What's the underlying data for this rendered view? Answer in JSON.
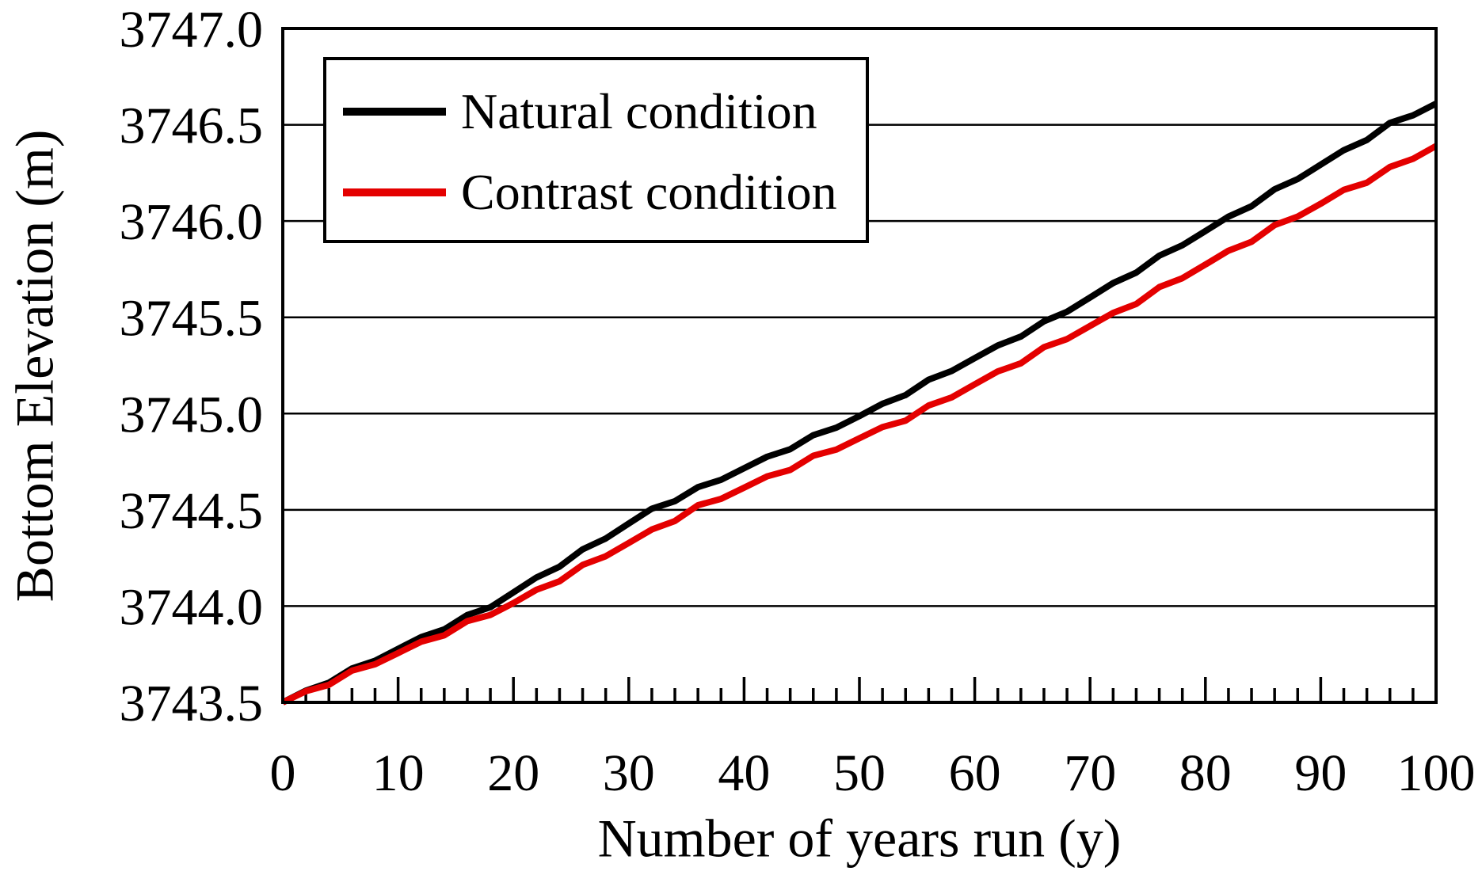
{
  "figure": {
    "background": "#ffffff",
    "axis_color": "#000000"
  },
  "chart_data": {
    "type": "line",
    "title": "",
    "xlabel": "Number of years run (y)",
    "ylabel": "Bottom Elevation (m)",
    "xlim": [
      0,
      100
    ],
    "ylim": [
      3743.5,
      3747.0
    ],
    "grid": "horizontal",
    "x_ticks": [
      0,
      10,
      20,
      30,
      40,
      50,
      60,
      70,
      80,
      90,
      100
    ],
    "x_minor_tick_step": 2,
    "y_ticks": [
      "3743.5",
      "3744.0",
      "3744.5",
      "3745.0",
      "3745.5",
      "3746.0",
      "3746.5",
      "3747.0"
    ],
    "legend": {
      "position": "top-left",
      "entries": [
        {
          "label": "Natural condition",
          "color": "#000000"
        },
        {
          "label": "Contrast condition",
          "color": "#e40000"
        }
      ]
    },
    "x": [
      0,
      2,
      4,
      6,
      8,
      10,
      12,
      14,
      16,
      18,
      20,
      22,
      24,
      26,
      28,
      30,
      32,
      34,
      36,
      38,
      40,
      42,
      44,
      46,
      48,
      50,
      52,
      54,
      56,
      58,
      60,
      62,
      64,
      66,
      68,
      70,
      72,
      74,
      76,
      78,
      80,
      82,
      84,
      86,
      88,
      90,
      92,
      94,
      96,
      98,
      100
    ],
    "series": [
      {
        "name": "Natural condition",
        "color": "#000000",
        "values": [
          3743.5,
          3743.561,
          3743.602,
          3743.676,
          3743.716,
          3743.778,
          3743.839,
          3743.879,
          3743.954,
          3743.994,
          3744.071,
          3744.149,
          3744.205,
          3744.295,
          3744.351,
          3744.429,
          3744.506,
          3744.545,
          3744.618,
          3744.656,
          3744.716,
          3744.776,
          3744.815,
          3744.888,
          3744.927,
          3744.987,
          3745.051,
          3745.096,
          3745.176,
          3745.221,
          3745.288,
          3745.354,
          3745.4,
          3745.479,
          3745.529,
          3745.603,
          3745.678,
          3745.732,
          3745.82,
          3745.874,
          3745.948,
          3746.023,
          3746.077,
          3746.165,
          3746.218,
          3746.293,
          3746.368,
          3746.421,
          3746.51,
          3746.549,
          3746.61
        ]
      },
      {
        "name": "Contrast condition",
        "color": "#e40000",
        "values": [
          3743.5,
          3743.558,
          3743.591,
          3743.665,
          3743.698,
          3743.756,
          3743.815,
          3743.848,
          3743.922,
          3743.954,
          3744.016,
          3744.085,
          3744.129,
          3744.214,
          3744.259,
          3744.328,
          3744.398,
          3744.442,
          3744.524,
          3744.557,
          3744.615,
          3744.674,
          3744.707,
          3744.781,
          3744.813,
          3744.872,
          3744.93,
          3744.963,
          3745.042,
          3745.084,
          3745.152,
          3745.219,
          3745.261,
          3745.345,
          3745.387,
          3745.455,
          3745.523,
          3745.569,
          3745.657,
          3745.703,
          3745.774,
          3745.846,
          3745.892,
          3745.979,
          3746.023,
          3746.09,
          3746.162,
          3746.199,
          3746.281,
          3746.323,
          3746.39
        ]
      }
    ]
  }
}
